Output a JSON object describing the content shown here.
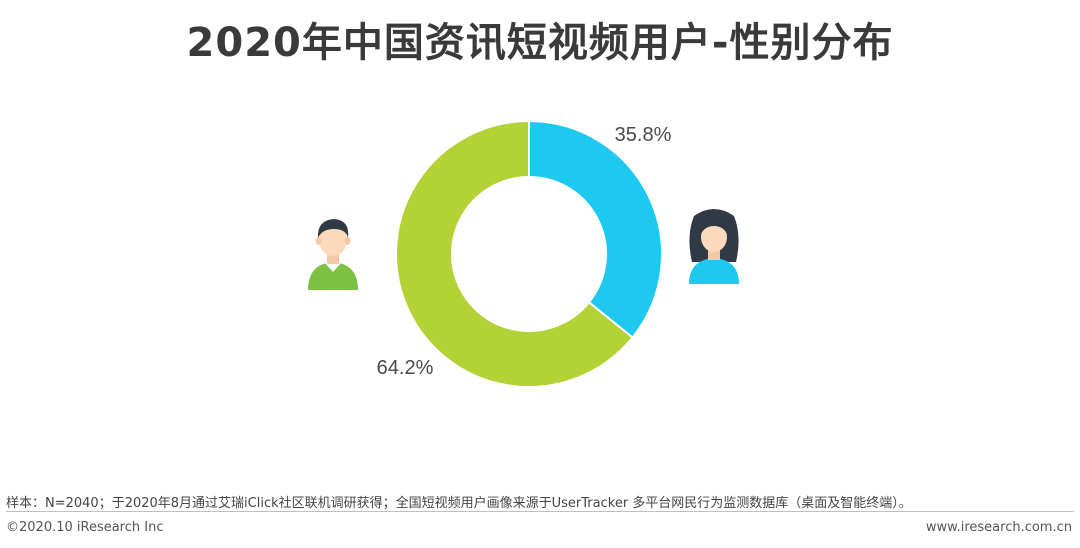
{
  "title": "2020年中国资讯短视频用户-性别分布",
  "chart_data": {
    "type": "pie",
    "donut": true,
    "categories": [
      "男",
      "女"
    ],
    "values": [
      64.2,
      35.8
    ],
    "labels": [
      "64.2%",
      "35.8%"
    ],
    "colors": [
      "#b2d235",
      "#1ec9f0"
    ]
  },
  "icons": {
    "male": "male-user-icon",
    "female": "female-user-icon"
  },
  "footer": {
    "note": "样本：N=2040；于2020年8月通过艾瑞iClick社区联机调研获得；全国短视频用户画像来源于UserTracker 多平台网民行为监测数据库（桌面及智能终端）。",
    "copyright": "©2020.10 iResearch Inc",
    "website": "www.iresearch.com.cn"
  }
}
